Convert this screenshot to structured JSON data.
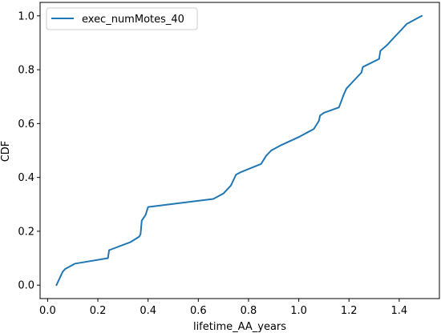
{
  "chart_data": {
    "type": "line",
    "xlabel": "lifetime_AA_years",
    "ylabel": "CDF",
    "xlim": [
      -0.03,
      1.56
    ],
    "ylim": [
      -0.05,
      1.05
    ],
    "xticks": [
      0.0,
      0.2,
      0.4,
      0.6,
      0.8,
      1.0,
      1.2,
      1.4
    ],
    "xtick_labels": [
      "0.0",
      "0.2",
      "0.4",
      "0.6",
      "0.8",
      "1.0",
      "1.2",
      "1.4"
    ],
    "yticks": [
      0.0,
      0.2,
      0.4,
      0.6,
      0.8,
      1.0
    ],
    "ytick_labels": [
      "0.0",
      "0.2",
      "0.4",
      "0.6",
      "0.8",
      "1.0"
    ],
    "grid": false,
    "legend_position": "top-left",
    "series": [
      {
        "name": "exec_numMotes_40",
        "color": "#1f77b4",
        "x": [
          0.035,
          0.06,
          0.07,
          0.11,
          0.24,
          0.245,
          0.33,
          0.365,
          0.37,
          0.375,
          0.39,
          0.4,
          0.66,
          0.7,
          0.72,
          0.73,
          0.74,
          0.75,
          0.77,
          0.85,
          0.87,
          0.89,
          0.93,
          1.0,
          1.06,
          1.08,
          1.085,
          1.1,
          1.16,
          1.18,
          1.19,
          1.22,
          1.25,
          1.255,
          1.32,
          1.325,
          1.35,
          1.38,
          1.4,
          1.43,
          1.49
        ],
        "y": [
          0.0,
          0.05,
          0.06,
          0.08,
          0.1,
          0.13,
          0.16,
          0.18,
          0.19,
          0.24,
          0.26,
          0.29,
          0.32,
          0.34,
          0.36,
          0.37,
          0.39,
          0.41,
          0.42,
          0.45,
          0.48,
          0.5,
          0.52,
          0.55,
          0.58,
          0.61,
          0.63,
          0.64,
          0.66,
          0.71,
          0.73,
          0.76,
          0.79,
          0.81,
          0.84,
          0.87,
          0.89,
          0.92,
          0.94,
          0.97,
          1.0
        ]
      }
    ]
  }
}
